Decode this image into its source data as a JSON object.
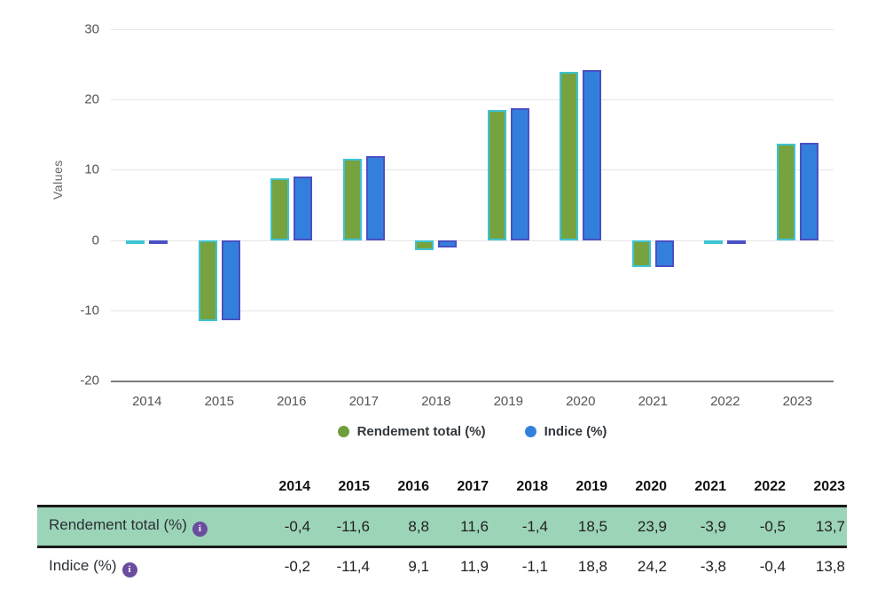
{
  "chart_data": {
    "type": "bar",
    "categories": [
      "2014",
      "2015",
      "2016",
      "2017",
      "2018",
      "2019",
      "2020",
      "2021",
      "2022",
      "2023"
    ],
    "series": [
      {
        "name": "Rendement total (%)",
        "values": [
          -0.4,
          -11.6,
          8.8,
          11.6,
          -1.4,
          18.5,
          23.9,
          -3.9,
          -0.5,
          13.7
        ],
        "fill": "#76a23f",
        "border": "#3ec3d3"
      },
      {
        "name": "Indice (%)",
        "values": [
          -0.2,
          -11.4,
          9.1,
          11.9,
          -1.1,
          18.8,
          24.2,
          -3.8,
          -0.4,
          13.8
        ],
        "fill": "#3380dc",
        "border": "#4a50c3"
      }
    ],
    "title": "",
    "xlabel": "",
    "ylabel": "Values",
    "ylim": [
      -20,
      30
    ],
    "yticks": [
      30,
      20,
      10,
      0,
      -10,
      -20
    ],
    "grid": true,
    "legend_position": "bottom"
  },
  "legend": {
    "items": [
      {
        "label": "Rendement total (%)",
        "color": "#6f9e3c"
      },
      {
        "label": "Indice (%)",
        "color": "#3380dc"
      }
    ]
  },
  "table": {
    "columns": [
      "2014",
      "2015",
      "2016",
      "2017",
      "2018",
      "2019",
      "2020",
      "2021",
      "2022",
      "2023"
    ],
    "rows": [
      {
        "label": "Rendement total (%)",
        "highlighted": true,
        "values": [
          "-0,4",
          "-11,6",
          "8,8",
          "11,6",
          "-1,4",
          "18,5",
          "23,9",
          "-3,9",
          "-0,5",
          "13,7"
        ]
      },
      {
        "label": "Indice (%)",
        "highlighted": false,
        "values": [
          "-0,2",
          "-11,4",
          "9,1",
          "11,9",
          "-1,1",
          "18,8",
          "24,2",
          "-3,8",
          "-0,4",
          "13,8"
        ]
      }
    ],
    "info_icon_glyph": "i"
  },
  "colors": {
    "gridline": "#e6e6e6",
    "axis_line": "#7c7c7c",
    "tick_text": "#555555",
    "highlight_row_bg": "#9cd4b7",
    "table_border": "#1a1a1a",
    "info_icon_bg": "#6b4c9f"
  }
}
